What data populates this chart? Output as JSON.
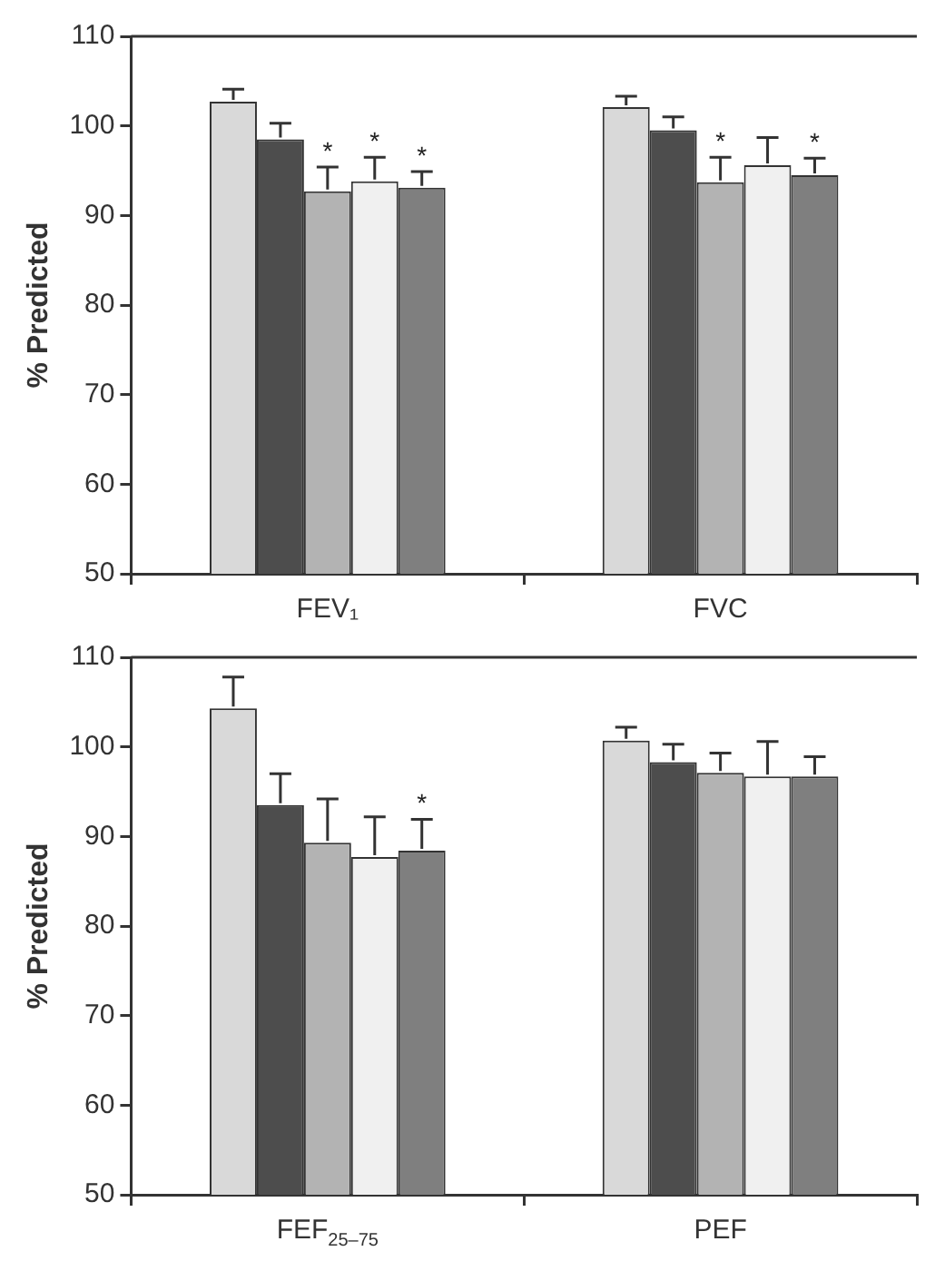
{
  "chart_data": [
    {
      "type": "bar",
      "ylabel": "% Predicted",
      "categories": [
        "FEV₁",
        "FVC"
      ],
      "ylim": [
        50,
        110
      ],
      "yticks": [
        50,
        60,
        70,
        80,
        90,
        100,
        110
      ],
      "series": [
        {
          "color": "#d9d9d9",
          "values": [
            102.7,
            102.1
          ],
          "errors": [
            [
              102.7,
              104.1
            ],
            [
              102.1,
              103.3
            ]
          ]
        },
        {
          "color": "#4d4d4d",
          "values": [
            98.5,
            99.5
          ],
          "errors": [
            [
              98.5,
              100.3
            ],
            [
              99.5,
              101.0
            ]
          ]
        },
        {
          "color": "#b3b3b3",
          "values": [
            92.7,
            93.7
          ],
          "errors": [
            [
              92.7,
              95.4
            ],
            [
              93.7,
              96.5
            ]
          ],
          "value_labels": [
            "*",
            "*"
          ]
        },
        {
          "color": "#f0f0f0",
          "values": [
            93.8,
            95.6
          ],
          "errors": [
            [
              93.8,
              96.5
            ],
            [
              95.6,
              98.7
            ]
          ],
          "value_labels": [
            "*",
            null
          ]
        },
        {
          "color": "#7f7f7f",
          "values": [
            93.1,
            94.5
          ],
          "errors": [
            [
              93.1,
              94.9
            ],
            [
              94.5,
              96.4
            ]
          ],
          "value_labels": [
            "*",
            "*"
          ]
        }
      ]
    },
    {
      "type": "bar",
      "ylabel": "% Predicted",
      "categories": [
        "FEF$_{25–75}$",
        "PEF"
      ],
      "ylim": [
        50,
        110
      ],
      "yticks": [
        50,
        60,
        70,
        80,
        90,
        100,
        110
      ],
      "series": [
        {
          "color": "#d9d9d9",
          "values": [
            104.3,
            100.7
          ],
          "errors": [
            [
              104.3,
              107.8
            ],
            [
              100.7,
              102.2
            ]
          ]
        },
        {
          "color": "#4d4d4d",
          "values": [
            93.5,
            98.3
          ],
          "errors": [
            [
              93.5,
              97.0
            ],
            [
              98.3,
              100.3
            ]
          ]
        },
        {
          "color": "#b3b3b3",
          "values": [
            89.3,
            97.1
          ],
          "errors": [
            [
              89.3,
              94.2
            ],
            [
              97.1,
              99.3
            ]
          ]
        },
        {
          "color": "#f0f0f0",
          "values": [
            87.7,
            96.7
          ],
          "errors": [
            [
              87.7,
              92.2
            ],
            [
              96.7,
              100.6
            ]
          ]
        },
        {
          "color": "#7f7f7f",
          "values": [
            88.4,
            96.7
          ],
          "errors": [
            [
              88.4,
              91.9
            ],
            [
              96.7,
              98.9
            ]
          ],
          "value_labels": [
            "*",
            null
          ]
        }
      ]
    }
  ]
}
